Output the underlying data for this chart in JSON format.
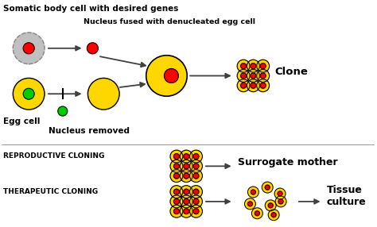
{
  "bg_color": "#ffffff",
  "title_text": "Somatic body cell with desired genes",
  "label_nucleus_fused": "Nucleus fused with denucleated egg cell",
  "label_clone": "Clone",
  "label_egg_cell": "Egg cell",
  "label_nucleus_removed": "Nucleus removed",
  "label_reproductive": "REPRODUCTIVE CLONING",
  "label_therapeutic": "THERAPEUTIC CLONING",
  "label_surrogate": "Surrogate mother",
  "label_tissue": "Tissue\nculture",
  "colors": {
    "yellow": "#FFD700",
    "red": "#FF0000",
    "green": "#00CC00",
    "gray_cell": "#C0C0C0",
    "gray_dots": "#A0A0A0",
    "outline": "#000000",
    "arrow": "#404040"
  },
  "figsize": [
    4.74,
    2.86
  ],
  "dpi": 100
}
